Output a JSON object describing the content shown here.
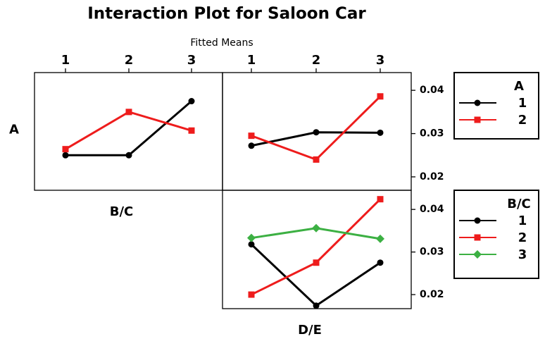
{
  "figure": {
    "title": "Interaction Plot for Saloon Car",
    "subtitle": "Fitted Means"
  },
  "chart_data": [
    {
      "type": "line",
      "y_label": "A",
      "x_label": "B/C",
      "categories": [
        "1",
        "2",
        "3"
      ],
      "ylim": [
        0.0169,
        0.0441
      ],
      "series": [
        {
          "color": "#000000",
          "marker": "circle",
          "values": [
            0.025,
            0.025,
            0.0375
          ]
        },
        {
          "color": "#ee1c1c",
          "marker": "square",
          "values": [
            0.0264,
            0.035,
            0.0307
          ]
        }
      ]
    },
    {
      "type": "line",
      "categories": [
        "1",
        "2",
        "3"
      ],
      "legend_title": "A",
      "ylim": [
        0.0169,
        0.0441
      ],
      "yticks": [
        0.02,
        0.03,
        0.04
      ],
      "series": [
        {
          "name": "1",
          "color": "#000000",
          "marker": "circle",
          "values": [
            0.0272,
            0.0303,
            0.0302
          ]
        },
        {
          "name": "2",
          "color": "#ee1c1c",
          "marker": "square",
          "values": [
            0.0295,
            0.024,
            0.0386
          ]
        }
      ]
    },
    {
      "type": "line",
      "x_label": "D/E",
      "categories": [
        null,
        null,
        null
      ],
      "legend_title": "B/C",
      "ylim": [
        0.0167,
        0.0445
      ],
      "yticks": [
        0.02,
        0.03,
        0.04
      ],
      "series": [
        {
          "name": "1",
          "color": "#000000",
          "marker": "circle",
          "values": [
            0.0318,
            0.0174,
            0.0275
          ]
        },
        {
          "name": "2",
          "color": "#ee1c1c",
          "marker": "square",
          "values": [
            0.02,
            0.0275,
            0.0424
          ]
        },
        {
          "name": "3",
          "color": "#3cb043",
          "marker": "diamond",
          "values": [
            0.0333,
            0.0356,
            0.0331
          ]
        }
      ]
    }
  ]
}
